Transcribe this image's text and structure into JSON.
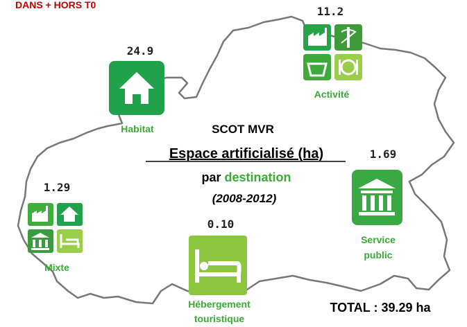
{
  "header": {
    "title": "DANS + HORS T0"
  },
  "center": {
    "title": "SCOT MVR",
    "subtitle": "Espace artificialisé (ha)",
    "by": "par",
    "by_word": "destination",
    "period": "(2008-2012)"
  },
  "items": [
    {
      "value": "24.9",
      "label": [
        "Habitat"
      ]
    },
    {
      "value": "11.2",
      "label": [
        "Activité"
      ]
    },
    {
      "value": "1.69",
      "label": [
        "Service",
        "public"
      ]
    },
    {
      "value": "1.29",
      "label": [
        "Mixte"
      ]
    },
    {
      "value": "0.10",
      "label": [
        "Hébergement",
        "touristique"
      ]
    }
  ],
  "total": "TOTAL : 39.29 ha"
}
